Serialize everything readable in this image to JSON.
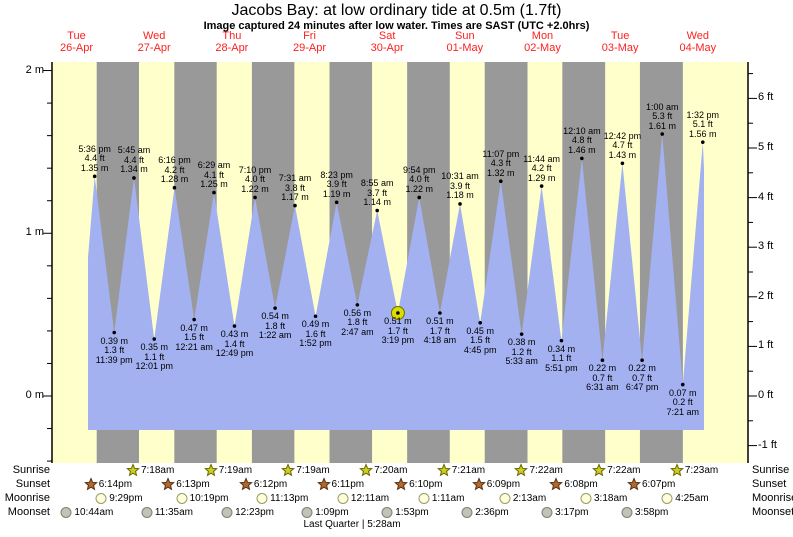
{
  "title": "Jacobs Bay: at low  ordinary tide at 0.5m (1.7ft)",
  "subtitle": "Image captured 24 minutes after low water. Times are SAST (UTC +2.0hrs)",
  "colors": {
    "band_day": "#ffffcc",
    "band_night": "#999999",
    "water": "#a3b1f1",
    "date_red": "#ff2020",
    "marker_yellow": "#dcdc00",
    "marker_ring": "#6b6b00",
    "axis": "#000000",
    "sunrise_star_fill": "#cccc22",
    "sunrise_star_stroke": "#666600",
    "sunset_star_fill": "#b06a30",
    "sunset_star_stroke": "#5a3010",
    "moonrise_fill": "#ffffdd",
    "moonrise_stroke": "#999966",
    "moonset_fill": "#c2c2b6",
    "moonset_stroke": "#80806e"
  },
  "days": [
    {
      "name": "Tue",
      "date": "26-Apr"
    },
    {
      "name": "Wed",
      "date": "27-Apr"
    },
    {
      "name": "Thu",
      "date": "28-Apr"
    },
    {
      "name": "Fri",
      "date": "29-Apr"
    },
    {
      "name": "Sat",
      "date": "30-Apr"
    },
    {
      "name": "Sun",
      "date": "01-May"
    },
    {
      "name": "Mon",
      "date": "02-May"
    },
    {
      "name": "Tue",
      "date": "03-May"
    },
    {
      "name": "Wed",
      "date": "04-May"
    }
  ],
  "chart_data": {
    "type": "line",
    "title": "Jacobs Bay: at low  ordinary tide at 0.5m (1.7ft)",
    "x_axis": "time over 9 days (Tue 26-Apr to Wed 04-May)",
    "y_axis_left": {
      "unit": "m",
      "labels": [
        "0 m",
        "1 m",
        "2 m"
      ],
      "values": [
        0,
        1,
        2
      ]
    },
    "y_axis_right": {
      "unit": "ft",
      "labels": [
        "-1 ft",
        "0 ft",
        "1 ft",
        "2 ft",
        "3 ft",
        "4 ft",
        "5 ft",
        "6 ft"
      ],
      "values": [
        -1,
        0,
        1,
        2,
        3,
        4,
        5,
        6
      ]
    },
    "ylim_ft": [
      -1.4,
      6.7
    ],
    "legend": "yellow bands = daylight, gray bands = night, blue = tide height",
    "tides": [
      {
        "kind": "high",
        "day": 0,
        "time": "5:36 pm",
        "m": 1.35,
        "ft_label": "4.4 ft",
        "m_label": "1.35 m"
      },
      {
        "kind": "low",
        "day": 0,
        "time": "11:39 pm",
        "m": 0.39,
        "ft_label": "1.3 ft",
        "m_label": "0.39 m"
      },
      {
        "kind": "high",
        "day": 1,
        "time": "5:45 am",
        "m": 1.34,
        "ft_label": "4.4 ft",
        "m_label": "1.34 m"
      },
      {
        "kind": "low",
        "day": 1,
        "time": "12:01 pm",
        "m": 0.35,
        "ft_label": "1.1 ft",
        "m_label": "0.35 m"
      },
      {
        "kind": "high",
        "day": 1,
        "time": "6:16 pm",
        "m": 1.28,
        "ft_label": "4.2 ft",
        "m_label": "1.28 m"
      },
      {
        "kind": "low",
        "day": 2,
        "time": "12:21 am",
        "m": 0.47,
        "ft_label": "1.5 ft",
        "m_label": "0.47 m"
      },
      {
        "kind": "high",
        "day": 2,
        "time": "6:29 am",
        "m": 1.25,
        "ft_label": "4.1 ft",
        "m_label": "1.25 m"
      },
      {
        "kind": "low",
        "day": 2,
        "time": "12:49 pm",
        "m": 0.43,
        "ft_label": "1.4 ft",
        "m_label": "0.43 m"
      },
      {
        "kind": "high",
        "day": 2,
        "time": "7:10 pm",
        "m": 1.22,
        "ft_label": "4.0 ft",
        "m_label": "1.22 m"
      },
      {
        "kind": "low",
        "day": 3,
        "time": "1:22 am",
        "m": 0.54,
        "ft_label": "1.8 ft",
        "m_label": "0.54 m"
      },
      {
        "kind": "high",
        "day": 3,
        "time": "7:31 am",
        "m": 1.17,
        "ft_label": "3.8 ft",
        "m_label": "1.17 m"
      },
      {
        "kind": "low",
        "day": 3,
        "time": "1:52 pm",
        "m": 0.49,
        "ft_label": "1.6 ft",
        "m_label": "0.49 m"
      },
      {
        "kind": "high",
        "day": 3,
        "time": "8:23 pm",
        "m": 1.19,
        "ft_label": "3.9 ft",
        "m_label": "1.19 m"
      },
      {
        "kind": "low",
        "day": 4,
        "time": "2:47 am",
        "m": 0.56,
        "ft_label": "1.8 ft",
        "m_label": "0.56 m"
      },
      {
        "kind": "high",
        "day": 4,
        "time": "8:55 am",
        "m": 1.14,
        "ft_label": "3.7 ft",
        "m_label": "1.14 m"
      },
      {
        "kind": "low",
        "day": 4,
        "time": "3:19 pm",
        "m": 0.51,
        "ft_label": "1.7 ft",
        "m_label": "0.51 m",
        "marker": true
      },
      {
        "kind": "high",
        "day": 4,
        "time": "9:54 pm",
        "m": 1.22,
        "ft_label": "4.0 ft",
        "m_label": "1.22 m"
      },
      {
        "kind": "low",
        "day": 5,
        "time": "4:18 am",
        "m": 0.51,
        "ft_label": "1.7 ft",
        "m_label": "0.51 m"
      },
      {
        "kind": "high",
        "day": 5,
        "time": "10:31 am",
        "m": 1.18,
        "ft_label": "3.9 ft",
        "m_label": "1.18 m"
      },
      {
        "kind": "low",
        "day": 5,
        "time": "4:45 pm",
        "m": 0.45,
        "ft_label": "1.5 ft",
        "m_label": "0.45 m"
      },
      {
        "kind": "high",
        "day": 5,
        "time": "11:07 pm",
        "m": 1.32,
        "ft_label": "4.3 ft",
        "m_label": "1.32 m"
      },
      {
        "kind": "low",
        "day": 6,
        "time": "5:33 am",
        "m": 0.38,
        "ft_label": "1.2 ft",
        "m_label": "0.38 m"
      },
      {
        "kind": "high",
        "day": 6,
        "time": "11:44 am",
        "m": 1.29,
        "ft_label": "4.2 ft",
        "m_label": "1.29 m"
      },
      {
        "kind": "low",
        "day": 6,
        "time": "5:51 pm",
        "m": 0.34,
        "ft_label": "1.1 ft",
        "m_label": "0.34 m"
      },
      {
        "kind": "high",
        "day": 7,
        "time": "12:10 am",
        "m": 1.46,
        "ft_label": "4.8 ft",
        "m_label": "1.46 m"
      },
      {
        "kind": "low",
        "day": 7,
        "time": "6:31 am",
        "m": 0.22,
        "ft_label": "0.7 ft",
        "m_label": "0.22 m"
      },
      {
        "kind": "high",
        "day": 7,
        "time": "12:42 pm",
        "m": 1.43,
        "ft_label": "4.7 ft",
        "m_label": "1.43 m"
      },
      {
        "kind": "low",
        "day": 7,
        "time": "6:47 pm",
        "m": 0.22,
        "ft_label": "0.7 ft",
        "m_label": "0.22 m"
      },
      {
        "kind": "high",
        "day": 8,
        "time": "1:00 am",
        "m": 1.61,
        "ft_label": "5.3 ft",
        "m_label": "1.61 m"
      },
      {
        "kind": "low",
        "day": 8,
        "time": "7:21 am",
        "m": 0.07,
        "ft_label": "0.2 ft",
        "m_label": "0.07 m"
      },
      {
        "kind": "high",
        "day": 8,
        "time": "1:32 pm",
        "m": 1.56,
        "ft_label": "5.1 ft",
        "m_label": "1.56 m"
      }
    ]
  },
  "astro": {
    "rows": [
      {
        "label": "Sunrise",
        "icon": "sunrise-icon",
        "events": [
          {
            "day": 1,
            "time": "7:18am"
          },
          {
            "day": 2,
            "time": "7:19am"
          },
          {
            "day": 3,
            "time": "7:19am"
          },
          {
            "day": 4,
            "time": "7:20am"
          },
          {
            "day": 5,
            "time": "7:21am"
          },
          {
            "day": 6,
            "time": "7:22am"
          },
          {
            "day": 7,
            "time": "7:22am"
          },
          {
            "day": 8,
            "time": "7:23am"
          }
        ]
      },
      {
        "label": "Sunset",
        "icon": "sunset-icon",
        "events": [
          {
            "day": 0,
            "time": "6:14pm"
          },
          {
            "day": 1,
            "time": "6:13pm"
          },
          {
            "day": 2,
            "time": "6:12pm"
          },
          {
            "day": 3,
            "time": "6:11pm"
          },
          {
            "day": 4,
            "time": "6:10pm"
          },
          {
            "day": 5,
            "time": "6:09pm"
          },
          {
            "day": 6,
            "time": "6:08pm"
          },
          {
            "day": 7,
            "time": "6:07pm"
          }
        ]
      },
      {
        "label": "Moonrise",
        "icon": "moonrise-icon",
        "events": [
          {
            "day": 0,
            "time": "9:29pm"
          },
          {
            "day": 1,
            "time": "10:19pm"
          },
          {
            "day": 2,
            "time": "11:13pm"
          },
          {
            "day": 4,
            "time": "12:11am"
          },
          {
            "day": 5,
            "time": "1:11am"
          },
          {
            "day": 6,
            "time": "2:13am"
          },
          {
            "day": 7,
            "time": "3:18am"
          },
          {
            "day": 8,
            "time": "4:25am"
          }
        ]
      },
      {
        "label": "Moonset",
        "icon": "moonset-icon",
        "events": [
          {
            "day": 0,
            "time": "10:44am"
          },
          {
            "day": 1,
            "time": "11:35am"
          },
          {
            "day": 2,
            "time": "12:23pm"
          },
          {
            "day": 3,
            "time": "1:09pm"
          },
          {
            "day": 4,
            "time": "1:53pm"
          },
          {
            "day": 5,
            "time": "2:36pm"
          },
          {
            "day": 6,
            "time": "3:17pm"
          },
          {
            "day": 7,
            "time": "3:58pm"
          }
        ]
      }
    ],
    "moon_phase": "Last Quarter | 5:28am"
  }
}
